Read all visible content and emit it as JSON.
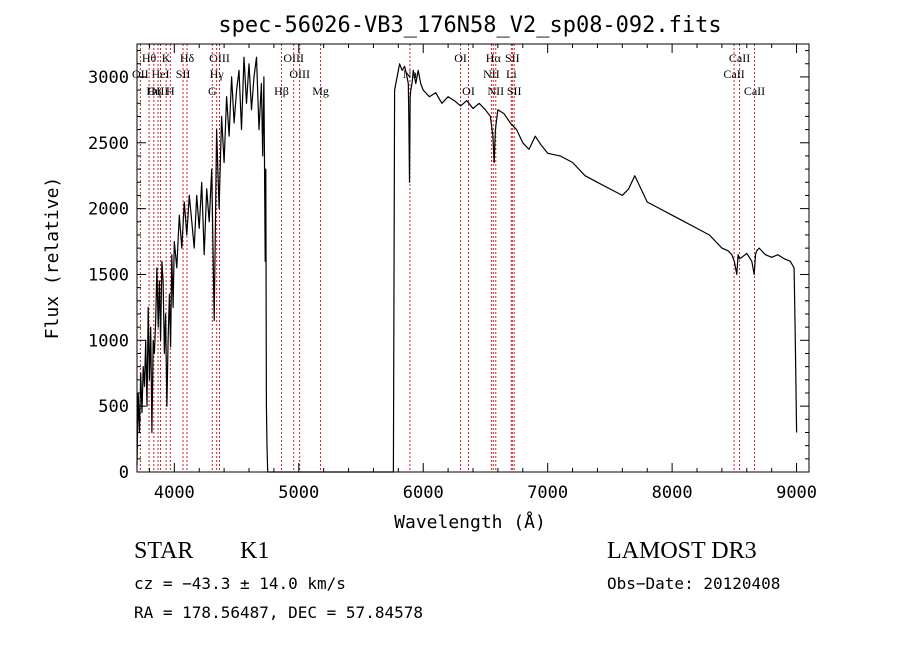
{
  "chart_data": {
    "type": "line",
    "title": "spec-56026-VB3_176N58_V2_sp08-092.fits",
    "xlabel": "Wavelength (Å)",
    "ylabel": "Flux (relative)",
    "xlim": [
      3700,
      9100
    ],
    "ylim": [
      0,
      3250
    ],
    "x_ticks": [
      4000,
      5000,
      6000,
      7000,
      8000,
      9000
    ],
    "x_tick_labels": [
      "4000",
      "5000",
      "6000",
      "7000",
      "8000",
      "9000"
    ],
    "y_ticks": [
      0,
      500,
      1000,
      1500,
      2000,
      2500,
      3000
    ],
    "y_tick_labels": [
      "0",
      "500",
      "1000",
      "1500",
      "2000",
      "2500",
      "3000"
    ],
    "series": [
      {
        "name": "spectrum",
        "x": [
          3700,
          3710,
          3720,
          3730,
          3740,
          3750,
          3760,
          3770,
          3780,
          3790,
          3800,
          3810,
          3820,
          3830,
          3840,
          3850,
          3860,
          3870,
          3880,
          3890,
          3900,
          3910,
          3920,
          3930,
          3940,
          3950,
          3960,
          3970,
          3980,
          3990,
          4000,
          4020,
          4040,
          4060,
          4080,
          4100,
          4120,
          4140,
          4160,
          4180,
          4200,
          4220,
          4240,
          4260,
          4280,
          4300,
          4320,
          4340,
          4360,
          4380,
          4400,
          4420,
          4440,
          4460,
          4480,
          4500,
          4520,
          4540,
          4560,
          4580,
          4600,
          4620,
          4640,
          4660,
          4680,
          4700,
          4710,
          4720,
          4730,
          4735,
          4740,
          4745,
          4750,
          4760,
          4770,
          5760,
          5770,
          5790,
          5810,
          5830,
          5850,
          5870,
          5880,
          5885,
          5890,
          5895,
          5900,
          5910,
          5920,
          5940,
          5960,
          5980,
          6000,
          6050,
          6100,
          6150,
          6200,
          6250,
          6300,
          6350,
          6400,
          6450,
          6500,
          6540,
          6560,
          6570,
          6580,
          6600,
          6650,
          6700,
          6750,
          6800,
          6850,
          6900,
          6950,
          7000,
          7100,
          7200,
          7300,
          7400,
          7500,
          7600,
          7650,
          7700,
          7800,
          7900,
          8000,
          8100,
          8200,
          8300,
          8400,
          8450,
          8480,
          8500,
          8520,
          8530,
          8540,
          8560,
          8600,
          8640,
          8660,
          8670,
          8680,
          8700,
          8750,
          8800,
          8850,
          8900,
          8950,
          8980,
          8990,
          9000
        ],
        "y": [
          50,
          600,
          300,
          750,
          450,
          800,
          650,
          1000,
          500,
          1250,
          700,
          1100,
          300,
          1000,
          900,
          1150,
          1550,
          1100,
          1450,
          1000,
          1600,
          1450,
          900,
          1200,
          500,
          1000,
          1350,
          950,
          1650,
          1250,
          1750,
          1550,
          1950,
          1700,
          2050,
          1800,
          2100,
          1900,
          1700,
          2100,
          1850,
          2200,
          1650,
          2150,
          1900,
          2300,
          1150,
          2600,
          2000,
          2700,
          2350,
          2850,
          2550,
          3000,
          2650,
          2900,
          3050,
          2600,
          3150,
          2800,
          3100,
          2750,
          3000,
          3150,
          2600,
          2950,
          2400,
          3000,
          1600,
          2300,
          500,
          200,
          0,
          0,
          0,
          0,
          2900,
          3000,
          3100,
          3050,
          3080,
          3000,
          2950,
          2650,
          2200,
          2850,
          2900,
          2950,
          3050,
          2950,
          3050,
          2950,
          2900,
          2850,
          2880,
          2800,
          2850,
          2820,
          2780,
          2820,
          2760,
          2800,
          2750,
          2700,
          2550,
          2350,
          2600,
          2750,
          2720,
          2650,
          2600,
          2500,
          2450,
          2550,
          2480,
          2420,
          2400,
          2350,
          2250,
          2200,
          2150,
          2100,
          2150,
          2250,
          2050,
          2000,
          1950,
          1900,
          1850,
          1800,
          1700,
          1680,
          1650,
          1600,
          1500,
          1650,
          1620,
          1630,
          1660,
          1600,
          1500,
          1650,
          1680,
          1700,
          1650,
          1630,
          1650,
          1620,
          1600,
          1550,
          1000,
          300
        ]
      }
    ],
    "line_markers": [
      {
        "label": "Hθ",
        "x": 3797,
        "row": 1
      },
      {
        "label": "OII",
        "x": 3727,
        "row": 2
      },
      {
        "label": "OIII",
        "x": 3869,
        "row": 3
      },
      {
        "label": "K",
        "x": 3934,
        "row": 1
      },
      {
        "label": "HeI",
        "x": 3889,
        "row": 2
      },
      {
        "label": "Hη",
        "x": 3835,
        "row": 3
      },
      {
        "label": "Hδ",
        "x": 4102,
        "row": 1
      },
      {
        "label": "SII",
        "x": 4070,
        "row": 2
      },
      {
        "label": "H",
        "x": 3968,
        "row": 3
      },
      {
        "label": "OIII",
        "x": 4363,
        "row": 1
      },
      {
        "label": "Hγ",
        "x": 4340,
        "row": 2
      },
      {
        "label": "G",
        "x": 4305,
        "row": 3
      },
      {
        "label": "OIII",
        "x": 4959,
        "row": 1
      },
      {
        "label": "OIII",
        "x": 5007,
        "row": 2
      },
      {
        "label": "Hβ",
        "x": 4861,
        "row": 3
      },
      {
        "label": "Mg",
        "x": 5175,
        "row": 3
      },
      {
        "label": "Na",
        "x": 5893,
        "row": 2
      },
      {
        "label": "OI",
        "x": 6300,
        "row": 1
      },
      {
        "label": "OI",
        "x": 6364,
        "row": 3
      },
      {
        "label": "Hα",
        "x": 6563,
        "row": 1
      },
      {
        "label": "SII",
        "x": 6716,
        "row": 1
      },
      {
        "label": "NII",
        "x": 6548,
        "row": 2
      },
      {
        "label": "Li",
        "x": 6708,
        "row": 2
      },
      {
        "label": "NII",
        "x": 6583,
        "row": 3
      },
      {
        "label": "SII",
        "x": 6731,
        "row": 3
      },
      {
        "label": "CaII",
        "x": 8542,
        "row": 1
      },
      {
        "label": "CaII",
        "x": 8498,
        "row": 2
      },
      {
        "label": "CaII",
        "x": 8662,
        "row": 3
      }
    ]
  },
  "info": {
    "class_label": "STAR",
    "subclass_label": "K1",
    "survey_label": "LAMOST DR3",
    "redshift_text": "cz = −43.3 ± 14.0 km/s",
    "obs_date_text": "Obs−Date: 20120408",
    "coords_text": "RA = 178.56487, DEC =  57.84578"
  }
}
